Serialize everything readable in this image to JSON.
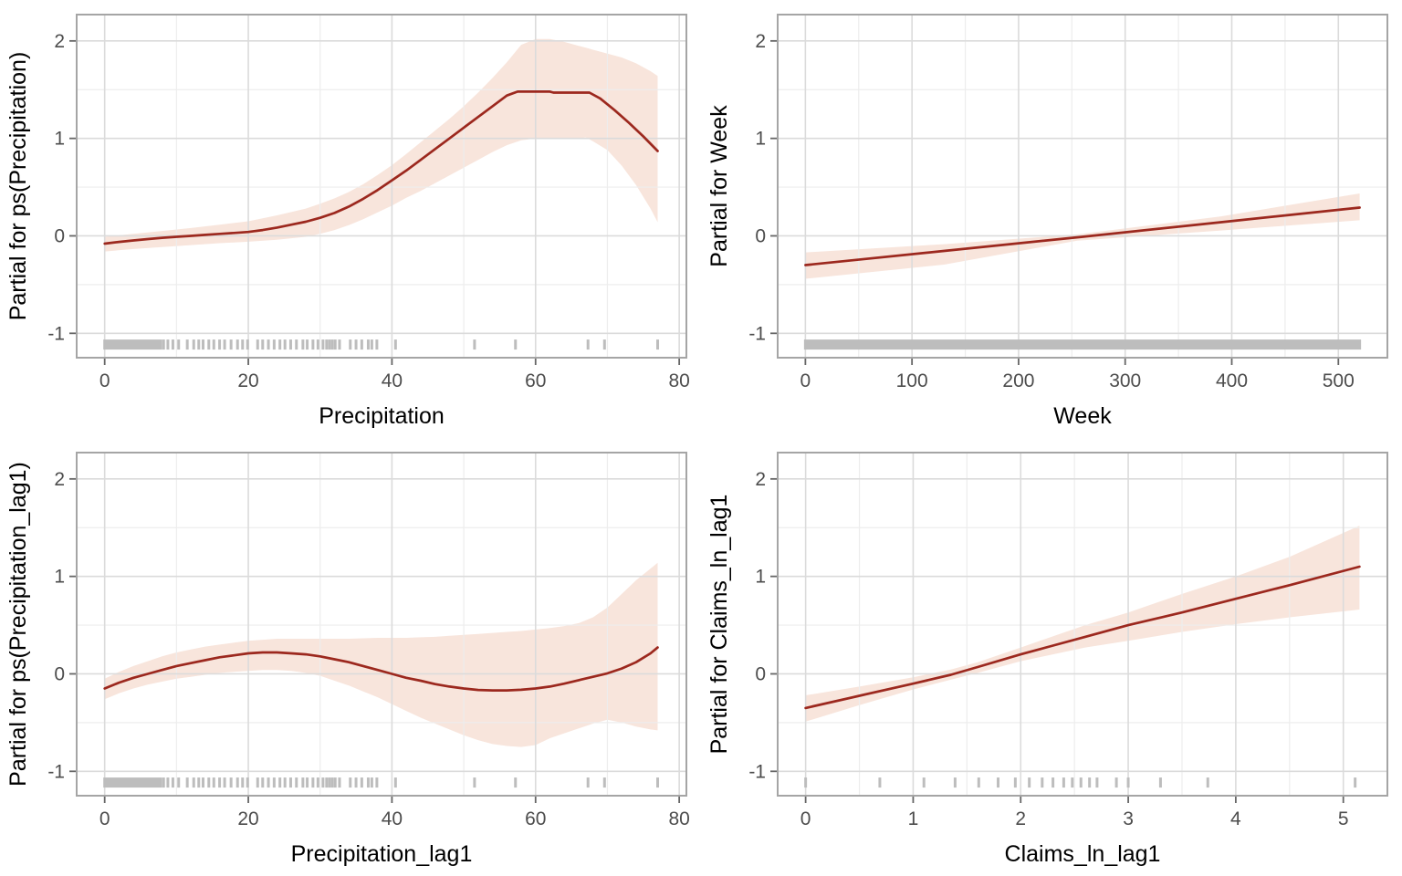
{
  "page": {
    "description": "2x2 grid of GAM partial-effect plots with confidence ribbons and rug marks",
    "background": "#ffffff"
  },
  "style": {
    "line_color": "#9c281e",
    "band_color": "#f8e5dc",
    "grid_major_color": "#dbdbdb",
    "grid_minor_color": "#ededed",
    "panel_border_color": "#a5a5a5",
    "tick_mark_color": "#666666",
    "tick_label_color": "#4d4d4d",
    "axis_title_color": "#000000",
    "rug_color": "#bdbdbd",
    "panel_bg": "#ffffff"
  },
  "chart_data": [
    {
      "id": "precipitation",
      "type": "line",
      "title": "",
      "xlabel": "Precipitation",
      "ylabel": "Partial for ps(Precipitation)",
      "xlim": [
        -3.9,
        81
      ],
      "ylim": [
        -1.25,
        2.27
      ],
      "x_ticks": [
        0,
        20,
        40,
        60,
        80
      ],
      "x_minor": [
        10,
        30,
        50,
        70
      ],
      "y_ticks": [
        -1,
        0,
        1,
        2
      ],
      "y_minor": [
        -0.5,
        0.5,
        1.5
      ],
      "grid": true,
      "legend": "none",
      "line": [
        [
          0,
          -0.08
        ],
        [
          2,
          -0.062
        ],
        [
          4,
          -0.047
        ],
        [
          6,
          -0.033
        ],
        [
          8,
          -0.02
        ],
        [
          10,
          -0.01
        ],
        [
          12,
          0.0
        ],
        [
          14,
          0.01
        ],
        [
          16,
          0.02
        ],
        [
          18,
          0.03
        ],
        [
          20,
          0.04
        ],
        [
          22,
          0.06
        ],
        [
          24,
          0.085
        ],
        [
          26,
          0.115
        ],
        [
          28,
          0.145
        ],
        [
          30,
          0.185
        ],
        [
          32,
          0.235
        ],
        [
          34,
          0.3
        ],
        [
          36,
          0.38
        ],
        [
          38,
          0.47
        ],
        [
          40,
          0.57
        ],
        [
          42,
          0.67
        ],
        [
          44,
          0.78
        ],
        [
          46,
          0.89
        ],
        [
          48,
          1.0
        ],
        [
          50,
          1.11
        ],
        [
          52,
          1.22
        ],
        [
          54,
          1.33
        ],
        [
          56,
          1.44
        ],
        [
          57.5,
          1.48
        ],
        [
          62,
          1.48
        ],
        [
          62.5,
          1.47
        ],
        [
          67.5,
          1.47
        ],
        [
          69,
          1.41
        ],
        [
          71,
          1.29
        ],
        [
          73,
          1.16
        ],
        [
          75,
          1.02
        ],
        [
          77,
          0.87
        ]
      ],
      "band": [
        [
          0,
          -0.16,
          -0.01
        ],
        [
          4,
          -0.135,
          0.02
        ],
        [
          8,
          -0.115,
          0.05
        ],
        [
          12,
          -0.095,
          0.08
        ],
        [
          16,
          -0.075,
          0.115
        ],
        [
          20,
          -0.06,
          0.15
        ],
        [
          24,
          -0.04,
          0.21
        ],
        [
          28,
          -0.01,
          0.28
        ],
        [
          30,
          0.02,
          0.33
        ],
        [
          32,
          0.06,
          0.385
        ],
        [
          34,
          0.11,
          0.45
        ],
        [
          36,
          0.17,
          0.53
        ],
        [
          38,
          0.24,
          0.625
        ],
        [
          40,
          0.31,
          0.725
        ],
        [
          42,
          0.39,
          0.84
        ],
        [
          44,
          0.46,
          0.96
        ],
        [
          46,
          0.54,
          1.08
        ],
        [
          48,
          0.62,
          1.2
        ],
        [
          50,
          0.7,
          1.33
        ],
        [
          52,
          0.78,
          1.47
        ],
        [
          54,
          0.86,
          1.62
        ],
        [
          56,
          0.93,
          1.78
        ],
        [
          58,
          0.98,
          1.96
        ],
        [
          60,
          1.0,
          2.02
        ],
        [
          62,
          1.0,
          2.02
        ],
        [
          64,
          1.0,
          1.99
        ],
        [
          66,
          1.0,
          1.95
        ],
        [
          67,
          1.01,
          1.93
        ],
        [
          68,
          0.97,
          1.91
        ],
        [
          70,
          0.88,
          1.87
        ],
        [
          72,
          0.72,
          1.83
        ],
        [
          74,
          0.52,
          1.77
        ],
        [
          76,
          0.28,
          1.69
        ],
        [
          77,
          0.14,
          1.64
        ]
      ],
      "rug": {
        "bars": [
          [
            0,
            7.8
          ]
        ],
        "ticks": [
          8.2,
          8.8,
          9.5,
          10.3,
          11.5,
          12.4,
          13.1,
          13.7,
          14.5,
          15.2,
          16,
          16.7,
          17.6,
          18.5,
          19.2,
          19.9,
          21.3,
          22,
          22.8,
          23.6,
          24.4,
          25.1,
          25.9,
          26.7,
          27.6,
          28.2,
          29,
          29.7,
          30.4,
          30.9,
          31.3,
          31.7,
          32.1,
          32.7,
          34.2,
          35,
          35.8,
          36.7,
          37.2,
          37.9,
          40.5,
          51.5,
          57.2,
          67.3,
          69.6,
          77
        ]
      }
    },
    {
      "id": "week",
      "type": "line",
      "title": "",
      "xlabel": "Week",
      "ylabel": "Partial for Week",
      "xlim": [
        -26,
        546
      ],
      "ylim": [
        -1.25,
        2.27
      ],
      "x_ticks": [
        0,
        100,
        200,
        300,
        400,
        500
      ],
      "x_minor": [
        50,
        150,
        250,
        350,
        450
      ],
      "y_ticks": [
        -1,
        0,
        1,
        2
      ],
      "y_minor": [
        -0.5,
        0.5,
        1.5
      ],
      "grid": true,
      "legend": "none",
      "line": [
        [
          0,
          -0.3
        ],
        [
          130,
          -0.155
        ],
        [
          260,
          -0.01
        ],
        [
          390,
          0.14
        ],
        [
          520,
          0.29
        ]
      ],
      "band": [
        [
          0,
          -0.44,
          -0.17
        ],
        [
          130,
          -0.295,
          -0.085
        ],
        [
          255,
          -0.05,
          0.015
        ],
        [
          390,
          0.055,
          0.2
        ],
        [
          520,
          0.16,
          0.435
        ]
      ],
      "rug": {
        "bars": [
          [
            0,
            520
          ]
        ],
        "ticks": []
      }
    },
    {
      "id": "precipitation_lag1",
      "type": "line",
      "title": "",
      "xlabel": "Precipitation_lag1",
      "ylabel": "Partial for ps(Precipitation_lag1)",
      "xlim": [
        -3.9,
        81
      ],
      "ylim": [
        -1.25,
        2.27
      ],
      "x_ticks": [
        0,
        20,
        40,
        60,
        80
      ],
      "x_minor": [
        10,
        30,
        50,
        70
      ],
      "y_ticks": [
        -1,
        0,
        1,
        2
      ],
      "y_minor": [
        -0.5,
        0.5,
        1.5
      ],
      "grid": true,
      "legend": "none",
      "line": [
        [
          0,
          -0.15
        ],
        [
          2,
          -0.09
        ],
        [
          4,
          -0.04
        ],
        [
          6,
          0.0
        ],
        [
          8,
          0.04
        ],
        [
          10,
          0.08
        ],
        [
          12,
          0.11
        ],
        [
          14,
          0.14
        ],
        [
          16,
          0.17
        ],
        [
          18,
          0.19
        ],
        [
          20,
          0.21
        ],
        [
          22,
          0.22
        ],
        [
          24,
          0.22
        ],
        [
          26,
          0.21
        ],
        [
          28,
          0.2
        ],
        [
          30,
          0.18
        ],
        [
          32,
          0.15
        ],
        [
          34,
          0.12
        ],
        [
          36,
          0.08
        ],
        [
          38,
          0.04
        ],
        [
          40,
          0.0
        ],
        [
          42,
          -0.04
        ],
        [
          44,
          -0.07
        ],
        [
          46,
          -0.105
        ],
        [
          48,
          -0.13
        ],
        [
          50,
          -0.15
        ],
        [
          52,
          -0.165
        ],
        [
          54,
          -0.17
        ],
        [
          56,
          -0.17
        ],
        [
          58,
          -0.163
        ],
        [
          60,
          -0.15
        ],
        [
          62,
          -0.13
        ],
        [
          64,
          -0.1
        ],
        [
          66,
          -0.065
        ],
        [
          68,
          -0.03
        ],
        [
          70,
          0.005
        ],
        [
          72,
          0.055
        ],
        [
          74,
          0.12
        ],
        [
          76,
          0.21
        ],
        [
          77,
          0.27
        ]
      ],
      "band": [
        [
          0,
          -0.26,
          -0.05
        ],
        [
          2,
          -0.2,
          0.02
        ],
        [
          4,
          -0.15,
          0.08
        ],
        [
          6,
          -0.11,
          0.13
        ],
        [
          8,
          -0.08,
          0.18
        ],
        [
          10,
          -0.05,
          0.22
        ],
        [
          12,
          -0.03,
          0.25
        ],
        [
          14,
          -0.01,
          0.28
        ],
        [
          16,
          0.01,
          0.3
        ],
        [
          18,
          0.02,
          0.32
        ],
        [
          20,
          0.03,
          0.34
        ],
        [
          22,
          0.04,
          0.35
        ],
        [
          24,
          0.04,
          0.36
        ],
        [
          26,
          0.03,
          0.36
        ],
        [
          28,
          0.01,
          0.36
        ],
        [
          30,
          -0.02,
          0.36
        ],
        [
          32,
          -0.07,
          0.36
        ],
        [
          34,
          -0.12,
          0.36
        ],
        [
          36,
          -0.18,
          0.365
        ],
        [
          38,
          -0.24,
          0.37
        ],
        [
          40,
          -0.31,
          0.37
        ],
        [
          42,
          -0.38,
          0.37
        ],
        [
          44,
          -0.45,
          0.375
        ],
        [
          46,
          -0.51,
          0.38
        ],
        [
          48,
          -0.57,
          0.39
        ],
        [
          50,
          -0.63,
          0.4
        ],
        [
          52,
          -0.68,
          0.41
        ],
        [
          54,
          -0.72,
          0.42
        ],
        [
          56,
          -0.74,
          0.43
        ],
        [
          58,
          -0.75,
          0.44
        ],
        [
          60,
          -0.73,
          0.455
        ],
        [
          62,
          -0.66,
          0.47
        ],
        [
          64,
          -0.61,
          0.49
        ],
        [
          66,
          -0.56,
          0.52
        ],
        [
          68,
          -0.51,
          0.58
        ],
        [
          70,
          -0.47,
          0.68
        ],
        [
          72,
          -0.5,
          0.82
        ],
        [
          74,
          -0.54,
          0.96
        ],
        [
          76,
          -0.57,
          1.08
        ],
        [
          77,
          -0.58,
          1.14
        ]
      ],
      "rug": {
        "bars": [
          [
            0,
            7.8
          ]
        ],
        "ticks": [
          8.2,
          8.8,
          9.5,
          10.3,
          11.5,
          12.4,
          13.1,
          13.7,
          14.5,
          15.2,
          16,
          16.7,
          17.6,
          18.5,
          19.2,
          19.9,
          21.3,
          22,
          22.8,
          23.6,
          24.4,
          25.1,
          25.9,
          26.7,
          27.6,
          28.2,
          29,
          29.7,
          30.4,
          30.9,
          31.3,
          31.7,
          32.1,
          32.7,
          34.2,
          35,
          35.8,
          36.7,
          37.2,
          37.9,
          40.5,
          51.5,
          57.2,
          67.3,
          69.6,
          77
        ]
      }
    },
    {
      "id": "claims_ln_lag1",
      "type": "line",
      "title": "",
      "xlabel": "Claims_ln_lag1",
      "ylabel": "Partial for Claims_ln_lag1",
      "xlim": [
        -0.26,
        5.41
      ],
      "ylim": [
        -1.25,
        2.27
      ],
      "x_ticks": [
        0,
        1,
        2,
        3,
        4,
        5
      ],
      "x_minor": [
        0.5,
        1.5,
        2.5,
        3.5,
        4.5
      ],
      "y_ticks": [
        -1,
        0,
        1,
        2
      ],
      "y_minor": [
        -0.5,
        0.5,
        1.5
      ],
      "grid": true,
      "legend": "none",
      "line": [
        [
          0,
          -0.35
        ],
        [
          0.5,
          -0.225
        ],
        [
          1,
          -0.1
        ],
        [
          1.35,
          -0.01
        ],
        [
          1.6,
          0.07
        ],
        [
          2,
          0.2
        ],
        [
          2.3,
          0.29
        ],
        [
          2.6,
          0.38
        ],
        [
          3,
          0.5
        ],
        [
          3.5,
          0.63
        ],
        [
          4,
          0.77
        ],
        [
          4.5,
          0.91
        ],
        [
          5.15,
          1.1
        ]
      ],
      "band": [
        [
          0,
          -0.49,
          -0.22
        ],
        [
          0.5,
          -0.32,
          -0.13
        ],
        [
          1,
          -0.16,
          -0.035
        ],
        [
          1.35,
          -0.06,
          0.045
        ],
        [
          1.6,
          0.01,
          0.12
        ],
        [
          2,
          0.13,
          0.27
        ],
        [
          2.6,
          0.27,
          0.5
        ],
        [
          3,
          0.34,
          0.63
        ],
        [
          3.5,
          0.43,
          0.82
        ],
        [
          4,
          0.51,
          1.0
        ],
        [
          4.5,
          0.58,
          1.2
        ],
        [
          5.15,
          0.66,
          1.52
        ]
      ],
      "rug": {
        "bars": [],
        "ticks": [
          0,
          0.69,
          1.1,
          1.39,
          1.61,
          1.79,
          1.95,
          2.08,
          2.2,
          2.3,
          2.4,
          2.48,
          2.56,
          2.64,
          2.71,
          2.89,
          3,
          3.3,
          3.74,
          5.11
        ]
      }
    }
  ]
}
